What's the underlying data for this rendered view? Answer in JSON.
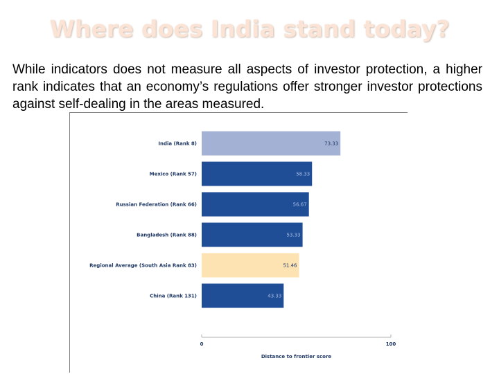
{
  "slide": {
    "title": "Where does India stand today?",
    "body": "While indicators does not measure all aspects of investor protection, a higher rank indicates that an economy’s regulations offer stronger investor protections against self-dealing in the areas measured."
  },
  "colors": {
    "india": "#a3b1d4",
    "default": "#1f4e96",
    "regional": "#fde3b1",
    "value_on_dark": "#a9bde6",
    "value_on_light": "#1f3864",
    "axis": "#b0b0b0"
  },
  "chart_data": {
    "type": "bar",
    "orientation": "horizontal",
    "categories": [
      "India (Rank 8)",
      "Mexico (Rank 57)",
      "Russian Federation (Rank 66)",
      "Bangladesh (Rank 88)",
      "Regional Average (South Asia Rank 83)",
      "China (Rank 131)"
    ],
    "values": [
      73.33,
      58.33,
      56.67,
      53.33,
      51.46,
      43.33
    ],
    "value_labels": [
      "73.33",
      "58.33",
      "56.67",
      "53.33",
      "51.46",
      "43.33"
    ],
    "bar_kinds": [
      "india",
      "default",
      "default",
      "default",
      "regional",
      "default"
    ],
    "xlim": [
      0,
      100
    ],
    "xticks": [
      "0",
      "100"
    ],
    "xlabel": "Distance to frontier score",
    "ylabel": "",
    "title": ""
  }
}
